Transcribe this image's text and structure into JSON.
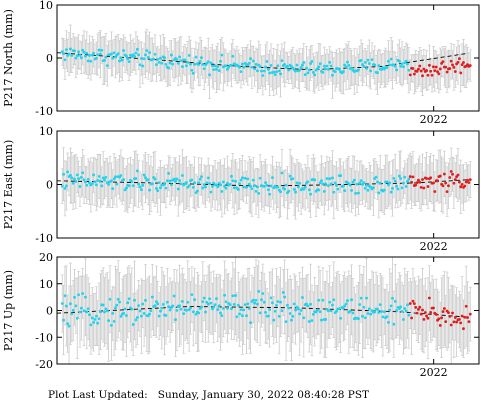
{
  "footer": {
    "label": "Plot Last Updated:",
    "datetime": "Sunday, January 30, 2022 08:40:28 PST"
  },
  "colors": {
    "data_points": "#22d3ee",
    "recent_points": "#e11d1d",
    "error_bars": "#c8c8c8",
    "trend_line": "#000000",
    "frame": "#000000"
  },
  "chart_data": [
    {
      "type": "scatter",
      "ylabel": "P217 North (mm)",
      "ylim": [
        -10,
        10
      ],
      "yticks": [
        -10,
        0,
        10
      ],
      "xtick_labels": [
        "2022"
      ],
      "x_range": [
        2020.92,
        2022.13
      ],
      "x_tick_values": [
        2022.0
      ],
      "recent_start": 2021.93,
      "error_bar_mm": 3.5,
      "trend": [
        [
          2020.92,
          1.0
        ],
        [
          2021.2,
          -0.3
        ],
        [
          2021.45,
          -1.6
        ],
        [
          2021.65,
          -2.2
        ],
        [
          2021.85,
          -1.6
        ],
        [
          2022.1,
          0.9
        ]
      ],
      "series_points": 300
    },
    {
      "type": "scatter",
      "ylabel": "P217 East (mm)",
      "ylim": [
        -10,
        10
      ],
      "yticks": [
        -10,
        0,
        10
      ],
      "xtick_labels": [
        "2022"
      ],
      "x_range": [
        2020.92,
        2022.13
      ],
      "x_tick_values": [
        2022.0
      ],
      "recent_start": 2021.93,
      "error_bar_mm": 4,
      "trend": [
        [
          2020.92,
          0.7
        ],
        [
          2021.25,
          0.2
        ],
        [
          2021.5,
          -0.3
        ],
        [
          2021.75,
          0.0
        ],
        [
          2021.95,
          0.3
        ],
        [
          2022.1,
          0.9
        ]
      ],
      "series_points": 300
    },
    {
      "type": "scatter",
      "ylabel": "P217 Up (mm)",
      "ylim": [
        -20,
        20
      ],
      "yticks": [
        -20,
        -10,
        0,
        10,
        20
      ],
      "xtick_labels": [
        "2022"
      ],
      "x_range": [
        2020.92,
        2022.13
      ],
      "x_tick_values": [
        2022.0
      ],
      "recent_start": 2021.93,
      "error_bar_mm": 12,
      "trend": [
        [
          2020.92,
          -1.0
        ],
        [
          2021.3,
          1.5
        ],
        [
          2021.6,
          1.0
        ],
        [
          2021.9,
          -0.5
        ],
        [
          2022.1,
          -2.5
        ]
      ],
      "series_points": 300
    }
  ]
}
